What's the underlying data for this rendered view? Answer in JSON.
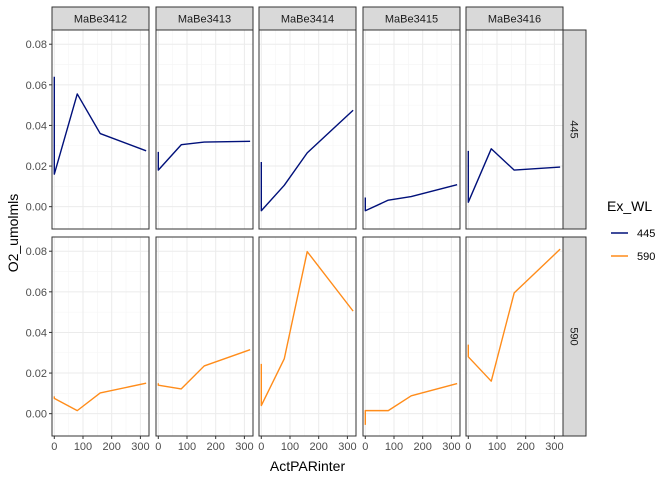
{
  "chart_data": {
    "type": "line",
    "title": "",
    "xlabel": "ActPARinter",
    "ylabel": "O2_umolmls",
    "xlim": [
      -8,
      330
    ],
    "ylim": [
      -0.011,
      0.087
    ],
    "x_ticks": [
      0,
      100,
      200,
      300
    ],
    "y_ticks": [
      0.0,
      0.02,
      0.04,
      0.06,
      0.08
    ],
    "y_tick_labels": [
      "0.00",
      "0.02",
      "0.04",
      "0.06",
      "0.08"
    ],
    "grid": true,
    "legend": {
      "title": "Ex_WL",
      "placement": "right",
      "entries": [
        {
          "label": "445",
          "color": "#00107a"
        },
        {
          "label": "590",
          "color": "#ff8c1a"
        }
      ]
    },
    "facet_cols": [
      "MaBe3412",
      "MaBe3413",
      "MaBe3414",
      "MaBe3415",
      "MaBe3416"
    ],
    "facet_rows": [
      "445",
      "590"
    ],
    "series": [
      {
        "row": "445",
        "col": "MaBe3412",
        "color": "#00107a",
        "x": [
          0,
          0,
          80,
          160,
          320
        ],
        "y": [
          0.064,
          0.016,
          0.0555,
          0.036,
          0.0275
        ]
      },
      {
        "row": "445",
        "col": "MaBe3413",
        "color": "#00107a",
        "x": [
          0,
          0,
          80,
          160,
          320
        ],
        "y": [
          0.027,
          0.018,
          0.0305,
          0.0318,
          0.0322
        ]
      },
      {
        "row": "445",
        "col": "MaBe3414",
        "color": "#00107a",
        "x": [
          0,
          0,
          80,
          160,
          320
        ],
        "y": [
          0.022,
          -0.002,
          0.0105,
          0.0265,
          0.0475
        ]
      },
      {
        "row": "445",
        "col": "MaBe3415",
        "color": "#00107a",
        "x": [
          0,
          0,
          80,
          160,
          320
        ],
        "y": [
          0.0045,
          -0.002,
          0.0032,
          0.005,
          0.0108
        ]
      },
      {
        "row": "445",
        "col": "MaBe3416",
        "color": "#00107a",
        "x": [
          0,
          0,
          80,
          160,
          320
        ],
        "y": [
          0.0275,
          0.0022,
          0.0285,
          0.018,
          0.0195
        ]
      },
      {
        "row": "590",
        "col": "MaBe3412",
        "color": "#ff8c1a",
        "x": [
          0,
          0,
          80,
          160,
          320
        ],
        "y": [
          0.0085,
          0.0075,
          0.0015,
          0.0102,
          0.015
        ]
      },
      {
        "row": "590",
        "col": "MaBe3413",
        "color": "#ff8c1a",
        "x": [
          0,
          0,
          80,
          160,
          320
        ],
        "y": [
          0.015,
          0.014,
          0.0122,
          0.0235,
          0.0315
        ]
      },
      {
        "row": "590",
        "col": "MaBe3414",
        "color": "#ff8c1a",
        "x": [
          0,
          0,
          80,
          160,
          320
        ],
        "y": [
          0.0245,
          0.004,
          0.027,
          0.0798,
          0.0505
        ]
      },
      {
        "row": "590",
        "col": "MaBe3415",
        "color": "#ff8c1a",
        "x": [
          0,
          0,
          80,
          160,
          320
        ],
        "y": [
          -0.0055,
          0.0015,
          0.0015,
          0.0088,
          0.0148
        ]
      },
      {
        "row": "590",
        "col": "MaBe3416",
        "color": "#ff8c1a",
        "x": [
          0,
          0,
          80,
          160,
          320
        ],
        "y": [
          0.034,
          0.028,
          0.016,
          0.0595,
          0.081
        ]
      }
    ]
  }
}
